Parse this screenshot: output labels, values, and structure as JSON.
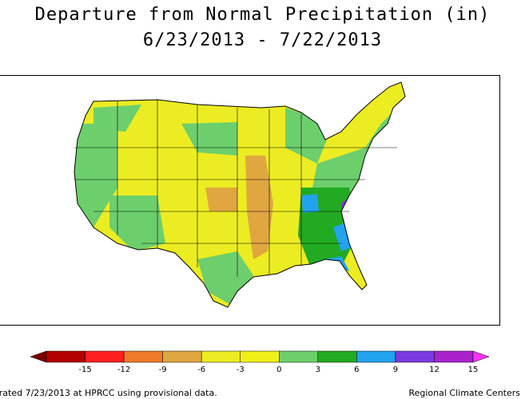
{
  "title": {
    "line1": "Departure from Normal Precipitation (in)",
    "line2": "6/23/2013 - 7/22/2013"
  },
  "legend": {
    "ticks": [
      "-15",
      "-12",
      "-9",
      "-6",
      "-3",
      "0",
      "3",
      "6",
      "9",
      "12",
      "15"
    ],
    "colors": [
      "#7a0000",
      "#b30000",
      "#ff2020",
      "#ee7a2a",
      "#e0a640",
      "#ecec22",
      "#f0f018",
      "#6ccf6c",
      "#22aa22",
      "#22a3ee",
      "#7a3ae0",
      "#aa22cc",
      "#ff33ff"
    ]
  },
  "footer": {
    "left": "erated 7/23/2013 at HPRCC using provisional data.",
    "right": "Regional Climate Centers"
  }
}
